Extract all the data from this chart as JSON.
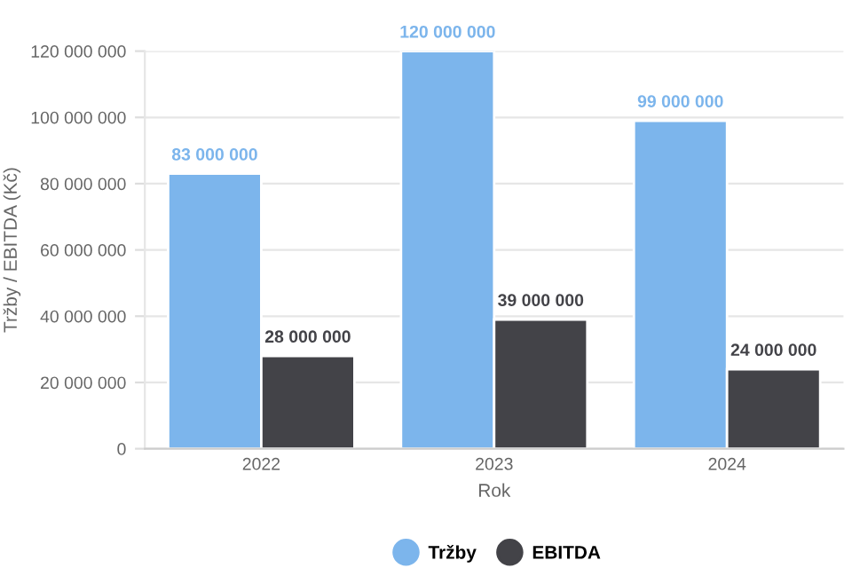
{
  "chart_data": {
    "type": "bar",
    "xlabel": "Rok",
    "ylabel": "Tržby / EBITDA (Kč)",
    "categories": [
      "2022",
      "2023",
      "2024"
    ],
    "series": [
      {
        "name": "Tržby",
        "color": "#7cb5ec",
        "values": [
          83000000,
          120000000,
          99000000
        ],
        "value_labels": [
          "83 000 000",
          "120 000 000",
          "99 000 000"
        ]
      },
      {
        "name": "EBITDA",
        "color": "#434348",
        "values": [
          28000000,
          39000000,
          24000000
        ],
        "value_labels": [
          "28 000 000",
          "39 000 000",
          "24 000 000"
        ]
      }
    ],
    "ylim": [
      0,
      120000000
    ],
    "yticks": [
      0,
      {
        "value": 20000000,
        "label": "20 000 000"
      },
      {
        "value": 40000000,
        "label": "40 000 000"
      },
      {
        "value": 60000000,
        "label": "60 000 000"
      },
      {
        "value": 80000000,
        "label": "80 000 000"
      },
      {
        "value": 100000000,
        "label": "100 000 000"
      },
      {
        "value": 120000000,
        "label": "120 000 000"
      }
    ],
    "grid": "y",
    "legend": "bottom"
  }
}
